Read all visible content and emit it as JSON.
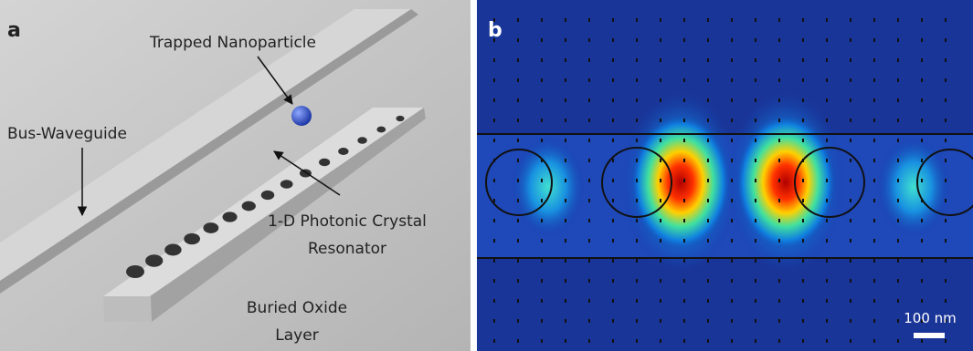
{
  "panels": [
    {
      "label": "a",
      "annotations": {
        "nanoparticle": [
          "Trapped Nanoparticle"
        ],
        "waveguide": [
          "Bus-Waveguide"
        ],
        "resonator": [
          "1-D Photonic Crystal",
          "Resonator"
        ],
        "oxide": [
          "Buried Oxide",
          "Layer"
        ]
      }
    },
    {
      "label": "b",
      "scale_bar": "100 nm"
    }
  ]
}
